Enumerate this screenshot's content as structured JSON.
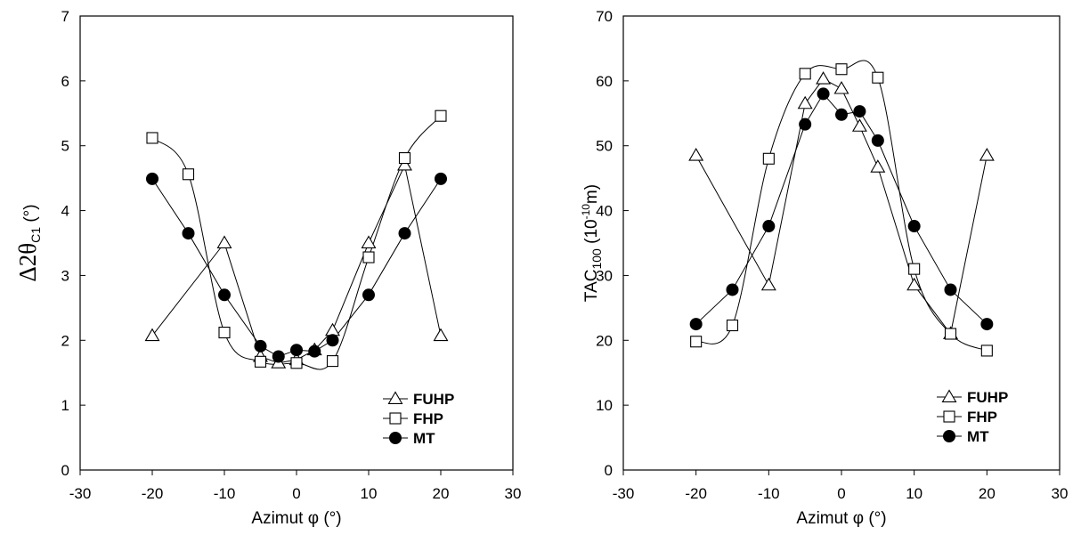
{
  "chart_data": [
    {
      "type": "scatter",
      "xlabel": "Azimut φ (°)",
      "ylabel": {
        "main": "Δ2θ",
        "sub": "C1",
        "unit": " (°)"
      },
      "xlim": [
        -30,
        30
      ],
      "ylim": [
        0,
        7
      ],
      "xticks": [
        -30,
        -20,
        -10,
        0,
        10,
        20,
        30
      ],
      "yticks": [
        0,
        1,
        2,
        3,
        4,
        5,
        6,
        7
      ],
      "grid": false,
      "legend_position": "bottom-right",
      "series": [
        {
          "name": "FUHP",
          "marker": "open-triangle",
          "line": "straight",
          "x": [
            -20,
            -10,
            -5,
            -2.5,
            0,
            2.5,
            5,
            10,
            15,
            20
          ],
          "y": [
            2.07,
            3.5,
            1.75,
            1.65,
            1.7,
            1.85,
            2.15,
            3.5,
            4.7,
            2.07
          ]
        },
        {
          "name": "FHP",
          "marker": "open-square",
          "line": "smooth",
          "x": [
            -20,
            -15,
            -10,
            -5,
            0,
            5,
            10,
            15,
            20
          ],
          "y": [
            5.12,
            4.56,
            2.12,
            1.67,
            1.65,
            1.68,
            3.28,
            4.81,
            5.46
          ]
        },
        {
          "name": "MT",
          "marker": "filled-circle",
          "line": "straight",
          "x": [
            -20,
            -15,
            -10,
            -5,
            -2.5,
            0,
            2.5,
            5,
            10,
            15,
            20
          ],
          "y": [
            4.49,
            3.65,
            2.7,
            1.91,
            1.75,
            1.85,
            1.83,
            2.0,
            2.7,
            3.65,
            4.49
          ]
        }
      ]
    },
    {
      "type": "scatter",
      "xlabel": "Azimut φ (°)",
      "ylabel": {
        "main": "TAC",
        "sub": "100",
        "unit": " (10",
        "sup": "-10",
        "tail": "m)"
      },
      "xlim": [
        -30,
        30
      ],
      "ylim": [
        0,
        70
      ],
      "xticks": [
        -30,
        -20,
        -10,
        0,
        10,
        20,
        30
      ],
      "yticks": [
        0,
        10,
        20,
        30,
        40,
        50,
        60,
        70
      ],
      "grid": false,
      "legend_position": "bottom-right",
      "series": [
        {
          "name": "FUHP",
          "marker": "open-triangle",
          "line": "straight",
          "x": [
            -20,
            -10,
            -5,
            -2.5,
            0,
            2.5,
            5,
            10,
            15,
            20
          ],
          "y": [
            48.5,
            28.5,
            56.5,
            60.3,
            58.8,
            53.0,
            46.7,
            28.5,
            21.0,
            48.5
          ]
        },
        {
          "name": "FHP",
          "marker": "open-square",
          "line": "smooth",
          "x": [
            -20,
            -15,
            -10,
            -5,
            0,
            5,
            10,
            15,
            20
          ],
          "y": [
            19.8,
            22.3,
            48.0,
            61.1,
            61.8,
            60.5,
            31.0,
            21.0,
            18.4
          ]
        },
        {
          "name": "MT",
          "marker": "filled-circle",
          "line": "straight",
          "x": [
            -20,
            -15,
            -10,
            -5,
            -2.5,
            0,
            2.5,
            5,
            10,
            15,
            20
          ],
          "y": [
            22.5,
            27.8,
            37.6,
            53.3,
            58.0,
            54.8,
            55.3,
            50.8,
            37.6,
            27.8,
            22.5
          ]
        }
      ]
    }
  ]
}
